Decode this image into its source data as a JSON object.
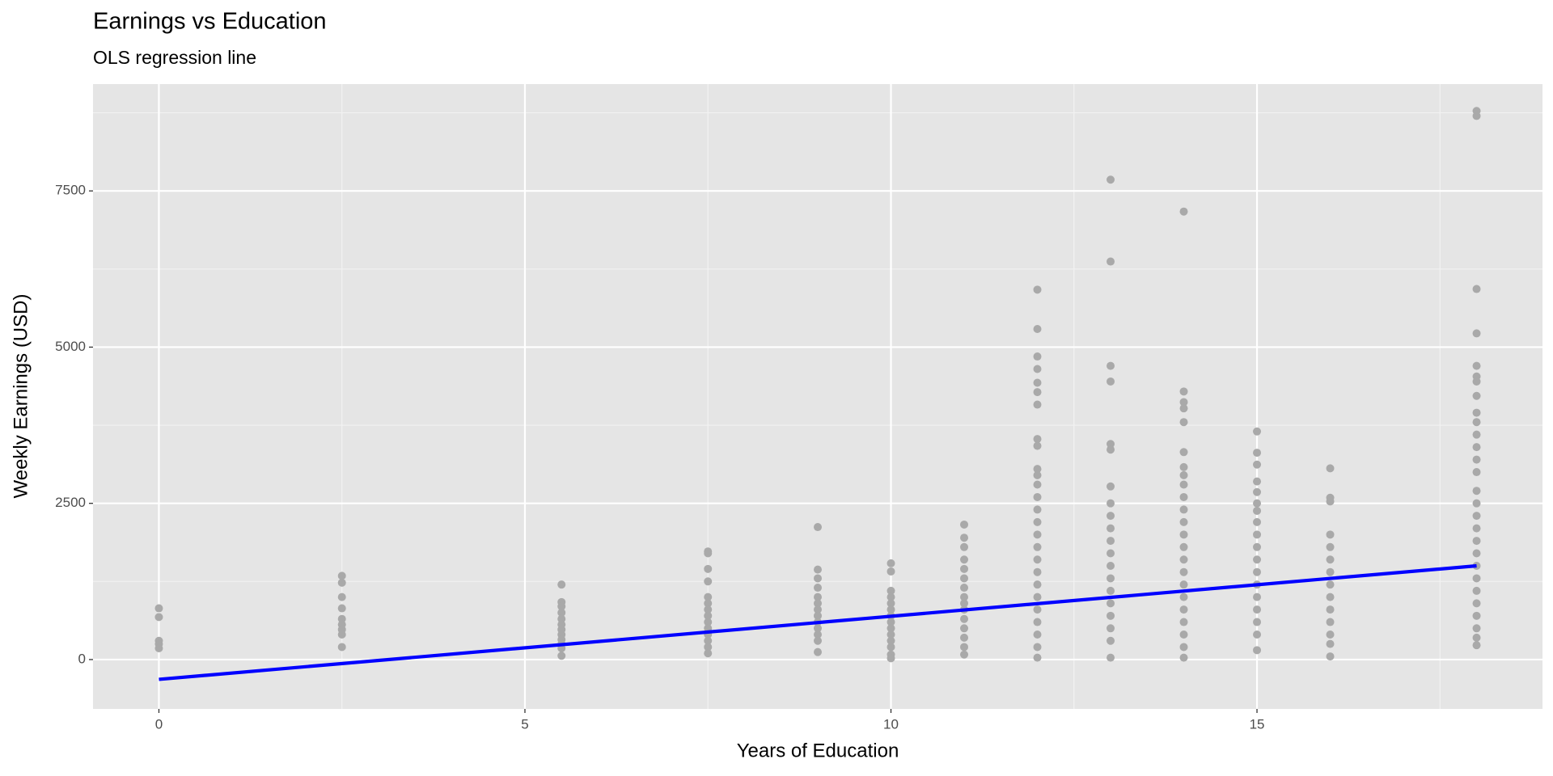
{
  "chart_data": {
    "type": "scatter",
    "title": "Earnings vs Education",
    "subtitle": "OLS regression line",
    "x_label": "Years of Education",
    "y_label": "Weekly Earnings (USD)",
    "xlim": [
      -0.9,
      18.9
    ],
    "ylim": [
      -790,
      9210
    ],
    "xticks": [
      0,
      5,
      10,
      15
    ],
    "yticks": [
      0,
      2500,
      5000,
      7500
    ],
    "minor_xticks": [
      2.5,
      7.5,
      12.5,
      17.5
    ],
    "minor_yticks": [
      1250,
      3750,
      6250,
      8750
    ],
    "grid": true,
    "series": [
      {
        "type": "scatter",
        "color": "#a9a9a9",
        "x": [
          0,
          0,
          0,
          0,
          0,
          2.5,
          2.5,
          2.5,
          2.5,
          2.5,
          2.5,
          2.5,
          2.5,
          2.5,
          5.5,
          5.5,
          5.5,
          5.5,
          5.5,
          5.5,
          5.5,
          5.5,
          5.5,
          5.5,
          5.5,
          5.5,
          7.5,
          7.5,
          7.5,
          7.5,
          7.5,
          7.5,
          7.5,
          7.5,
          7.5,
          7.5,
          7.5,
          7.5,
          7.5,
          7.5,
          9,
          9,
          9,
          9,
          9,
          9,
          9,
          9,
          9,
          9,
          9,
          9,
          9,
          10,
          10,
          10,
          10,
          10,
          10,
          10,
          10,
          10,
          10,
          10,
          10,
          10,
          10,
          11,
          11,
          11,
          11,
          11,
          11,
          11,
          11,
          11,
          11,
          11,
          11,
          11,
          11,
          11,
          12,
          12,
          12,
          12,
          12,
          12,
          12,
          12,
          12,
          12,
          12,
          12,
          12,
          12,
          12,
          12,
          12,
          12,
          12,
          12,
          12,
          12,
          12,
          12,
          12,
          12,
          13,
          13,
          13,
          13,
          13,
          13,
          13,
          13,
          13,
          13,
          13,
          13,
          13,
          13,
          13,
          13,
          13,
          13,
          13,
          13,
          14,
          14,
          14,
          14,
          14,
          14,
          14,
          14,
          14,
          14,
          14,
          14,
          14,
          14,
          14,
          14,
          14,
          14,
          14,
          14,
          14,
          14,
          14,
          15,
          15,
          15,
          15,
          15,
          15,
          15,
          15,
          15,
          15,
          15,
          15,
          15,
          15,
          15,
          15,
          15,
          15,
          16,
          16,
          16,
          16,
          16,
          16,
          16,
          16,
          16,
          16,
          16,
          16,
          16,
          16,
          18,
          18,
          18,
          18,
          18,
          18,
          18,
          18,
          18,
          18,
          18,
          18,
          18,
          18,
          18,
          18,
          18,
          18,
          18,
          18,
          18,
          18,
          18,
          18,
          18,
          18,
          18,
          18
        ],
        "values": [
          820,
          680,
          300,
          250,
          180,
          1340,
          1230,
          1000,
          820,
          650,
          560,
          480,
          400,
          200,
          1200,
          920,
          850,
          750,
          650,
          560,
          480,
          400,
          320,
          250,
          180,
          60,
          1730,
          1700,
          1450,
          1250,
          1000,
          900,
          800,
          700,
          600,
          500,
          400,
          300,
          200,
          100,
          2120,
          1440,
          1300,
          1150,
          1000,
          900,
          800,
          700,
          600,
          500,
          400,
          300,
          120,
          1540,
          1410,
          1100,
          1000,
          900,
          800,
          700,
          600,
          500,
          400,
          300,
          200,
          80,
          20,
          2160,
          1950,
          1800,
          1600,
          1450,
          1300,
          1150,
          1000,
          900,
          800,
          650,
          500,
          350,
          200,
          80,
          5920,
          5290,
          4850,
          4650,
          4430,
          4280,
          4080,
          3530,
          3420,
          3050,
          2950,
          2800,
          2600,
          2400,
          2200,
          2000,
          1800,
          1600,
          1400,
          1200,
          1000,
          800,
          600,
          400,
          200,
          30,
          7680,
          6370,
          4700,
          4450,
          3450,
          3360,
          2770,
          2500,
          2300,
          2100,
          1900,
          1700,
          1500,
          1300,
          1100,
          900,
          700,
          500,
          300,
          30,
          7170,
          4290,
          4120,
          4020,
          3800,
          3320,
          3080,
          2950,
          2800,
          2600,
          2400,
          2200,
          2000,
          1800,
          1600,
          1400,
          1200,
          1000,
          800,
          600,
          400,
          200,
          30,
          3650,
          3310,
          3120,
          2850,
          2680,
          2500,
          2380,
          2200,
          2000,
          1800,
          1600,
          1400,
          1200,
          1000,
          800,
          600,
          400,
          150,
          3060,
          2590,
          2530,
          2000,
          1800,
          1600,
          1400,
          1200,
          1000,
          800,
          600,
          400,
          250,
          50,
          8780,
          8700,
          5930,
          5220,
          4700,
          4530,
          4450,
          4220,
          3950,
          3800,
          3600,
          3400,
          3200,
          3000,
          2700,
          2500,
          2300,
          2100,
          1900,
          1700,
          1500,
          1300,
          1100,
          900,
          700,
          500,
          350,
          230
        ]
      },
      {
        "type": "line",
        "color": "#0000ff",
        "x": [
          0,
          18
        ],
        "values": [
          -317,
          1500
        ]
      }
    ]
  }
}
